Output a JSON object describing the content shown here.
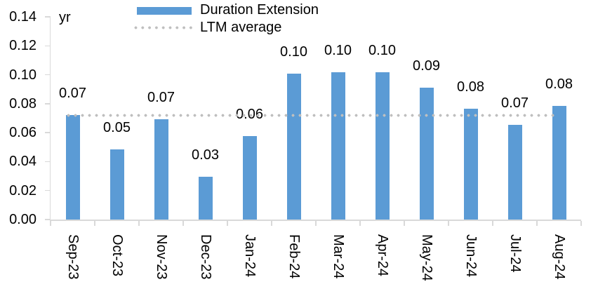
{
  "chart_data": {
    "type": "bar",
    "title": "",
    "ylabel": "yr",
    "categories": [
      "Sep-23",
      "Oct-23",
      "Nov-23",
      "Dec-23",
      "Jan-24",
      "Feb-24",
      "Mar-24",
      "Apr-24",
      "May-24",
      "Jun-24",
      "Jul-24",
      "Aug-24"
    ],
    "series": [
      {
        "name": "Duration Extension",
        "color": "#5b9bd5",
        "values": [
          0.072,
          0.0485,
          0.0695,
          0.0295,
          0.0575,
          0.101,
          0.1015,
          0.1015,
          0.091,
          0.0765,
          0.0655,
          0.0785
        ],
        "data_labels": [
          "0.07",
          "0.05",
          "0.07",
          "0.03",
          "0.06",
          "0.10",
          "0.10",
          "0.10",
          "0.09",
          "0.08",
          "0.07",
          "0.08"
        ]
      }
    ],
    "reference_line": {
      "name": "LTM average",
      "value": 0.072,
      "color": "#bfbfbf",
      "style": "dotted"
    },
    "ylim": [
      0,
      0.14
    ],
    "yticks": [
      0,
      0.02,
      0.04,
      0.06,
      0.08,
      0.1,
      0.12,
      0.14
    ],
    "ytick_labels": [
      "0.00",
      "0.02",
      "0.04",
      "0.06",
      "0.08",
      "0.10",
      "0.12",
      "0.14"
    ],
    "legend_position": "top",
    "grid": false,
    "axis_color": "#d9d9d9",
    "text_color": "#000000"
  }
}
